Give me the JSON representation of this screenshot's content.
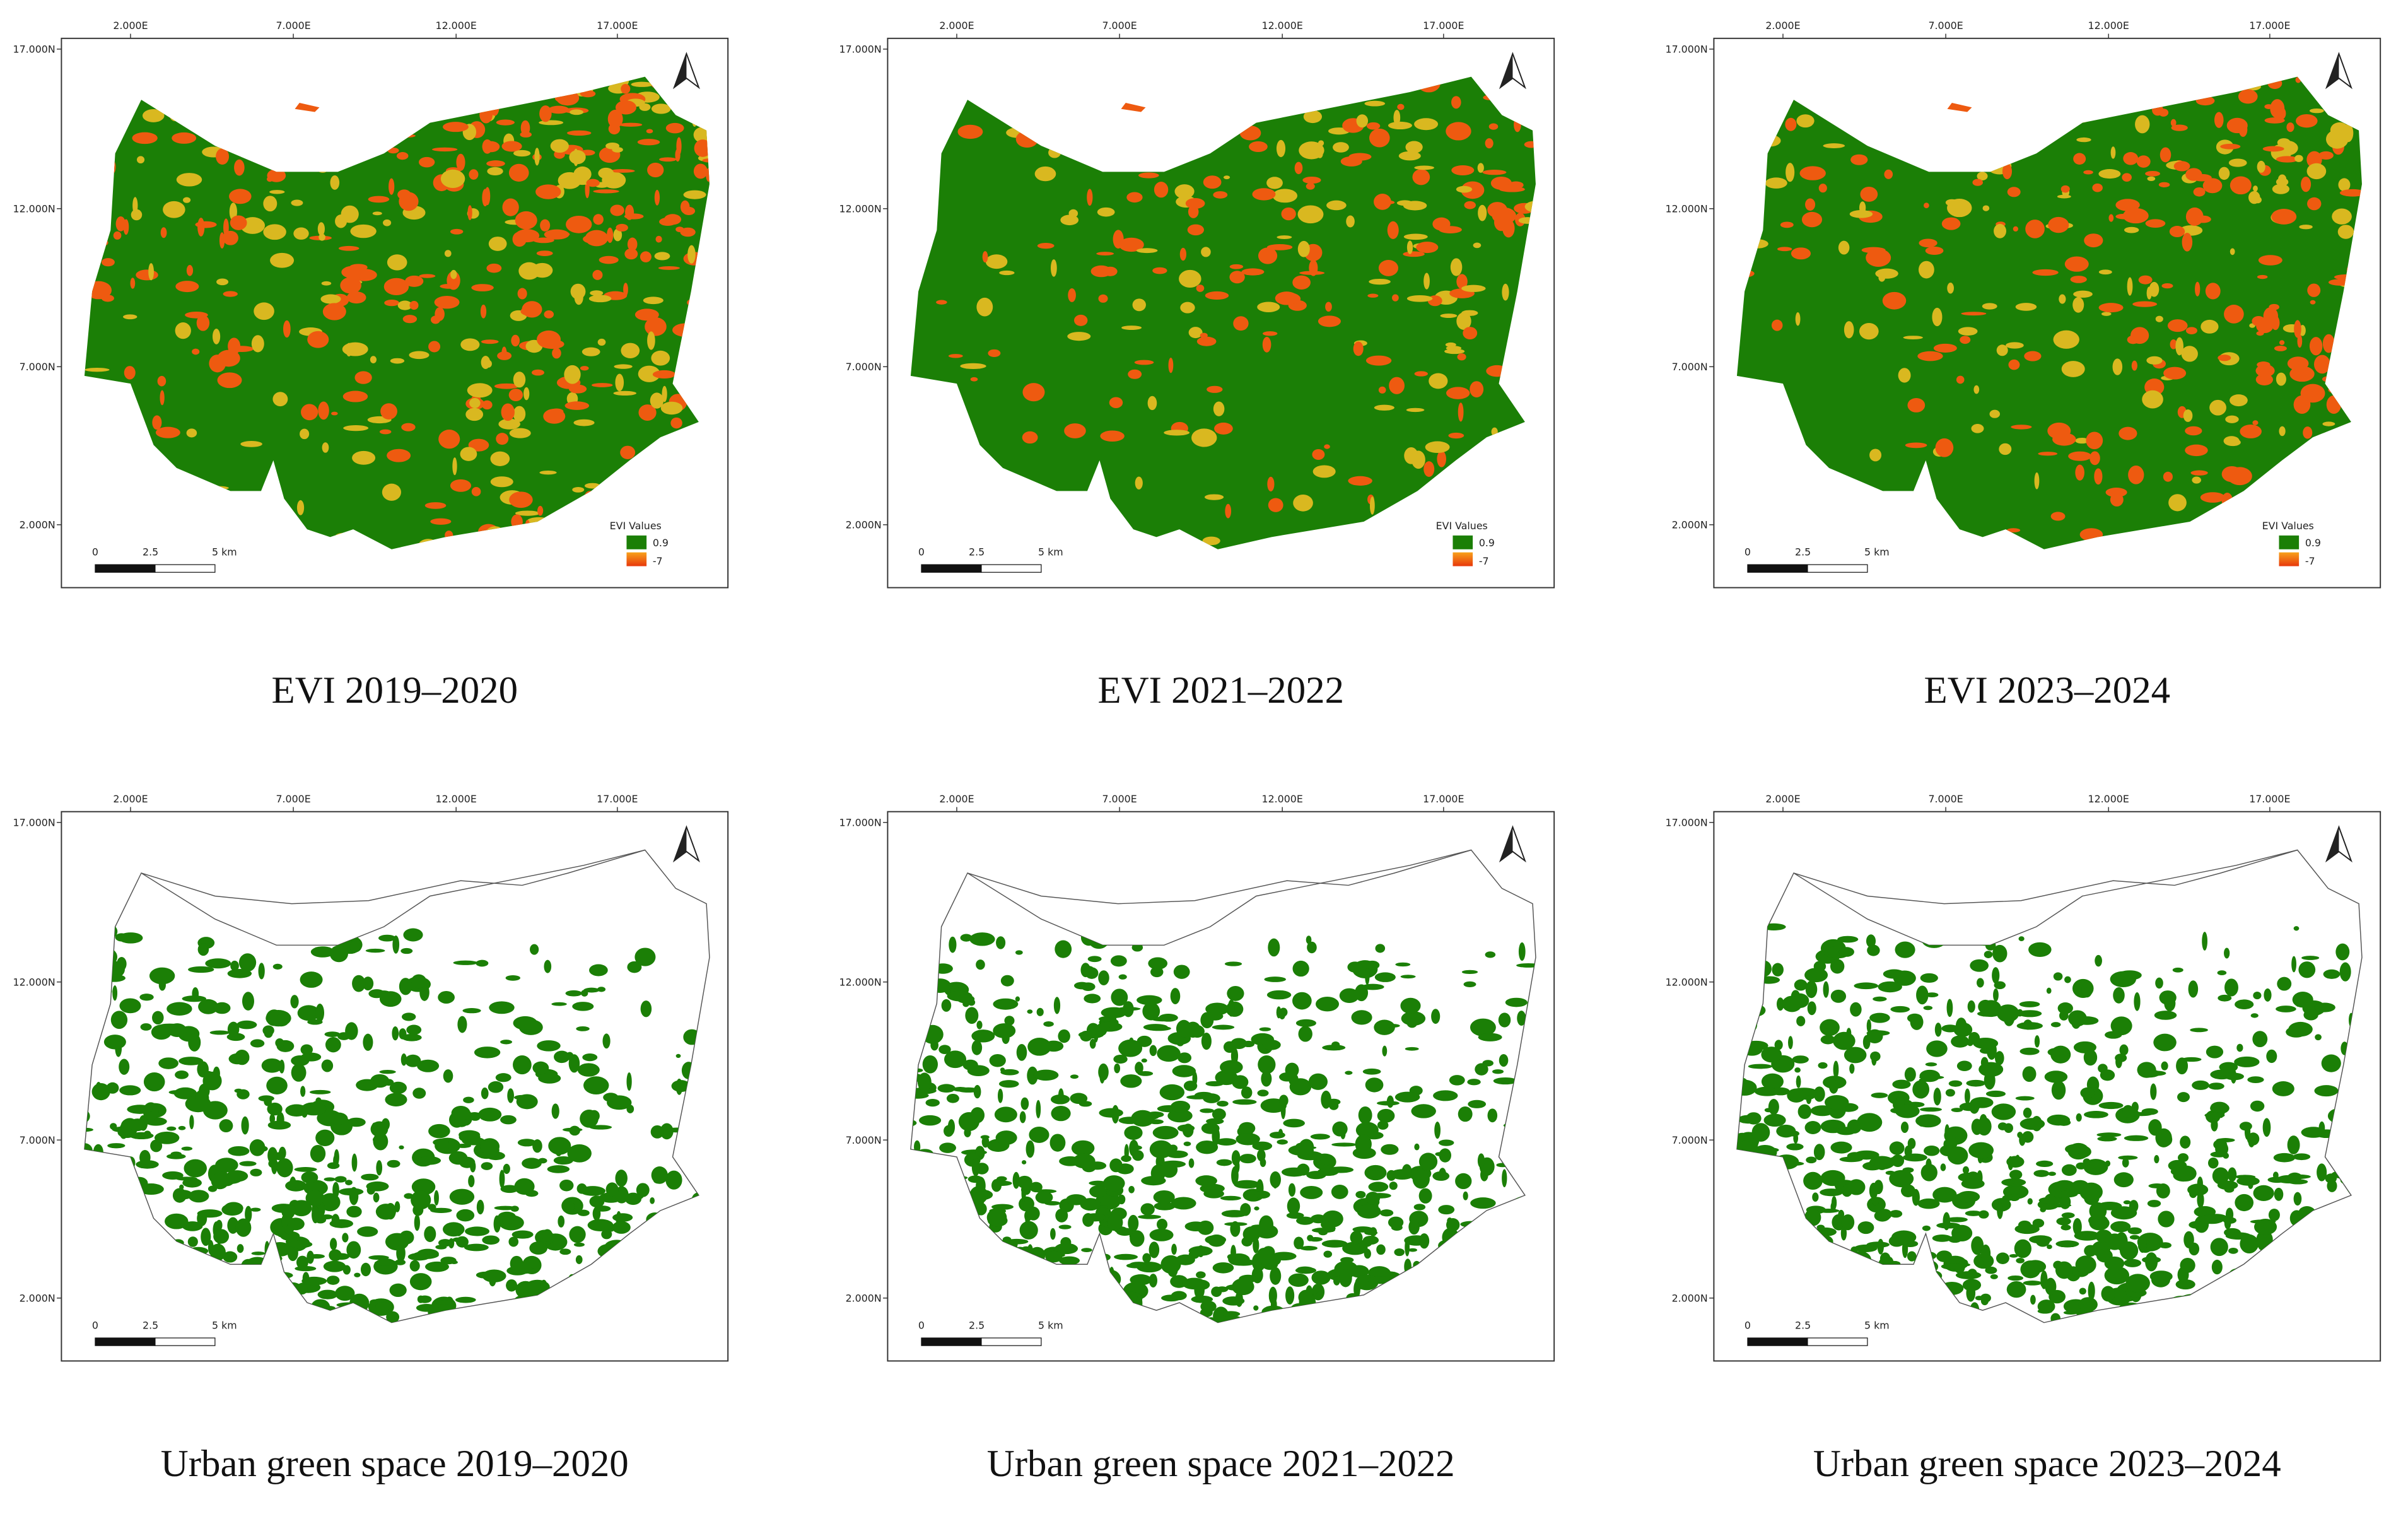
{
  "axes": {
    "x_labels": [
      "2.000E",
      "7.000E",
      "12.000E",
      "17.000E"
    ],
    "y_labels": [
      "17.000N",
      "12.000N",
      "7.000N",
      "2.000N"
    ]
  },
  "scale_bar": {
    "labels": [
      "0",
      "2.5",
      "5 km"
    ]
  },
  "panels": [
    {
      "kind": "evi",
      "caption": "EVI 2019–2020",
      "legend": {
        "title": "EVI Values",
        "items": [
          "0.9",
          "-7"
        ]
      }
    },
    {
      "kind": "evi",
      "caption": "EVI 2021–2022",
      "legend": {
        "title": "EVI Values",
        "items": [
          "0.9",
          "-7"
        ]
      }
    },
    {
      "kind": "evi",
      "caption": "EVI 2023–2024",
      "legend": {
        "title": "EVI Values",
        "items": [
          "0.9",
          "-7"
        ]
      }
    },
    {
      "kind": "ugs",
      "caption": "Urban green space 2019–2020"
    },
    {
      "kind": "ugs",
      "caption": "Urban green space 2021–2022"
    },
    {
      "kind": "ugs",
      "caption": "Urban green space 2023–2024"
    }
  ]
}
